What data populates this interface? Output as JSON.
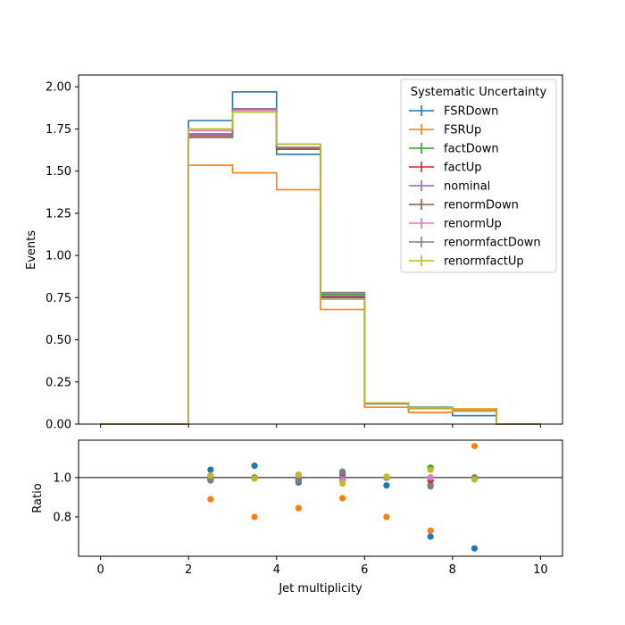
{
  "chart_data": [
    {
      "type": "line",
      "ylabel": "Events",
      "ylim": [
        0,
        2.07
      ],
      "xlim": [
        -0.5,
        10.5
      ],
      "yticks": [
        "0.00",
        "0.25",
        "0.50",
        "0.75",
        "1.00",
        "1.25",
        "1.50",
        "1.75",
        "2.00"
      ],
      "legend_title": "Systematic Uncertainty",
      "legend_position": "top-right",
      "bin_edges": [
        0,
        1,
        2,
        3,
        4,
        5,
        6,
        7,
        8,
        9,
        10
      ],
      "series": [
        {
          "name": "FSRDown",
          "color": "#1f77b4",
          "values": [
            0,
            0,
            1.8,
            1.97,
            1.6,
            0.75,
            0.12,
            0.07,
            0.05,
            0,
            0
          ]
        },
        {
          "name": "FSRUp",
          "color": "#ff7f0e",
          "values": [
            0,
            0,
            1.535,
            1.49,
            1.39,
            0.68,
            0.1,
            0.07,
            0.09,
            0,
            0
          ]
        },
        {
          "name": "factDown",
          "color": "#2ca02c",
          "values": [
            0,
            0,
            1.72,
            1.86,
            1.64,
            0.77,
            0.125,
            0.1,
            0.08,
            0,
            0
          ]
        },
        {
          "name": "factUp",
          "color": "#d62728",
          "values": [
            0,
            0,
            1.71,
            1.86,
            1.63,
            0.755,
            0.125,
            0.095,
            0.08,
            0,
            0
          ]
        },
        {
          "name": "nominal",
          "color": "#9467bd",
          "values": [
            0,
            0,
            1.72,
            1.86,
            1.64,
            0.76,
            0.125,
            0.097,
            0.078,
            0,
            0
          ]
        },
        {
          "name": "renormDown",
          "color": "#8c564b",
          "values": [
            0,
            0,
            1.7,
            1.86,
            1.63,
            0.78,
            0.125,
            0.093,
            0.078,
            0,
            0
          ]
        },
        {
          "name": "renormUp",
          "color": "#e377c2",
          "values": [
            0,
            0,
            1.74,
            1.86,
            1.66,
            0.74,
            0.125,
            0.097,
            0.078,
            0,
            0
          ]
        },
        {
          "name": "renormfactDown",
          "color": "#7f7f7f",
          "values": [
            0,
            0,
            1.7,
            1.87,
            1.64,
            0.78,
            0.125,
            0.093,
            0.078,
            0,
            0
          ]
        },
        {
          "name": "renormfactUp",
          "color": "#bcbd22",
          "values": [
            0,
            0,
            1.75,
            1.85,
            1.66,
            0.74,
            0.125,
            0.095,
            0.078,
            0,
            0
          ]
        }
      ]
    },
    {
      "type": "scatter",
      "xlabel": "Jet multiplicity",
      "ylabel": "Ratio",
      "xlim": [
        -0.5,
        10.5
      ],
      "ylim": [
        0.6,
        1.19
      ],
      "xticks": [
        "0",
        "2",
        "4",
        "6",
        "8",
        "10"
      ],
      "yticks": [
        "0.8",
        "1.0"
      ],
      "reference_line": 1.0,
      "x": [
        2.5,
        3.5,
        4.5,
        5.5,
        6.5,
        7.5,
        8.5
      ],
      "series": [
        {
          "name": "FSRDown",
          "color": "#1f77b4",
          "values": [
            1.04,
            1.06,
            0.975,
            1.0,
            0.96,
            0.7,
            0.64
          ]
        },
        {
          "name": "FSRUp",
          "color": "#ff7f0e",
          "values": [
            0.89,
            0.8,
            0.845,
            0.895,
            0.8,
            0.73,
            1.16
          ]
        },
        {
          "name": "factDown",
          "color": "#2ca02c",
          "values": [
            1.0,
            1.0,
            1.0,
            1.015,
            1.0,
            1.05,
            1.0
          ]
        },
        {
          "name": "factUp",
          "color": "#d62728",
          "values": [
            0.99,
            1.0,
            0.99,
            0.99,
            1.0,
            0.985,
            1.0
          ]
        },
        {
          "name": "nominal",
          "color": "#9467bd",
          "values": [
            1.0,
            1.0,
            1.0,
            1.0,
            1.0,
            1.0,
            1.0
          ]
        },
        {
          "name": "renormDown",
          "color": "#8c564b",
          "values": [
            0.99,
            1.0,
            0.99,
            1.025,
            1.0,
            0.96,
            1.0
          ]
        },
        {
          "name": "renormUp",
          "color": "#e377c2",
          "values": [
            1.01,
            1.0,
            1.01,
            0.985,
            1.0,
            1.0,
            1.0
          ]
        },
        {
          "name": "renormfactDown",
          "color": "#7f7f7f",
          "values": [
            0.985,
            1.0,
            0.985,
            1.03,
            1.0,
            0.955,
            1.0
          ]
        },
        {
          "name": "renormfactUp",
          "color": "#bcbd22",
          "values": [
            1.01,
            0.995,
            1.015,
            0.97,
            1.005,
            1.04,
            0.99
          ]
        }
      ]
    }
  ]
}
